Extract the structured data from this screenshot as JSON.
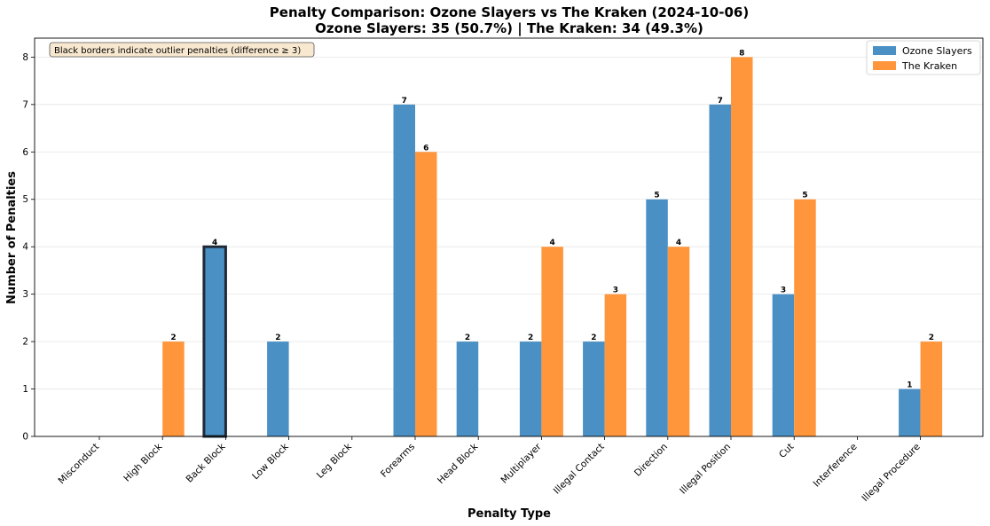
{
  "chart_data": {
    "type": "bar",
    "title_line1": "Penalty Comparison: Ozone Slayers vs The Kraken (2024-10-06)",
    "title_line2": "Ozone Slayers: 35 (50.7%) | The Kraken: 34 (49.3%)",
    "xlabel": "Penalty Type",
    "ylabel": "Number of Penalties",
    "ylim": [
      0,
      8.4
    ],
    "yticks": [
      0,
      1,
      2,
      3,
      4,
      5,
      6,
      7,
      8
    ],
    "grid": "y",
    "legend_position": "top-right",
    "annotation": "Black borders indicate outlier penalties (difference ≥ 3)",
    "categories": [
      "Misconduct",
      "High Block",
      "Back Block",
      "Low Block",
      "Leg Block",
      "Forearms",
      "Head Block",
      "Multiplayer",
      "Illegal Contact",
      "Direction",
      "Illegal Position",
      "Cut",
      "Interference",
      "Illegal Procedure"
    ],
    "series": [
      {
        "name": "Ozone Slayers",
        "color": "#4a90c4",
        "values": [
          0,
          0,
          4,
          2,
          0,
          7,
          2,
          2,
          2,
          5,
          7,
          3,
          0,
          1
        ]
      },
      {
        "name": "The Kraken",
        "color": "#ff963c",
        "values": [
          0,
          2,
          0,
          0,
          0,
          6,
          0,
          4,
          3,
          4,
          8,
          5,
          0,
          2
        ]
      }
    ],
    "outlier_categories": [
      "Back Block"
    ]
  }
}
